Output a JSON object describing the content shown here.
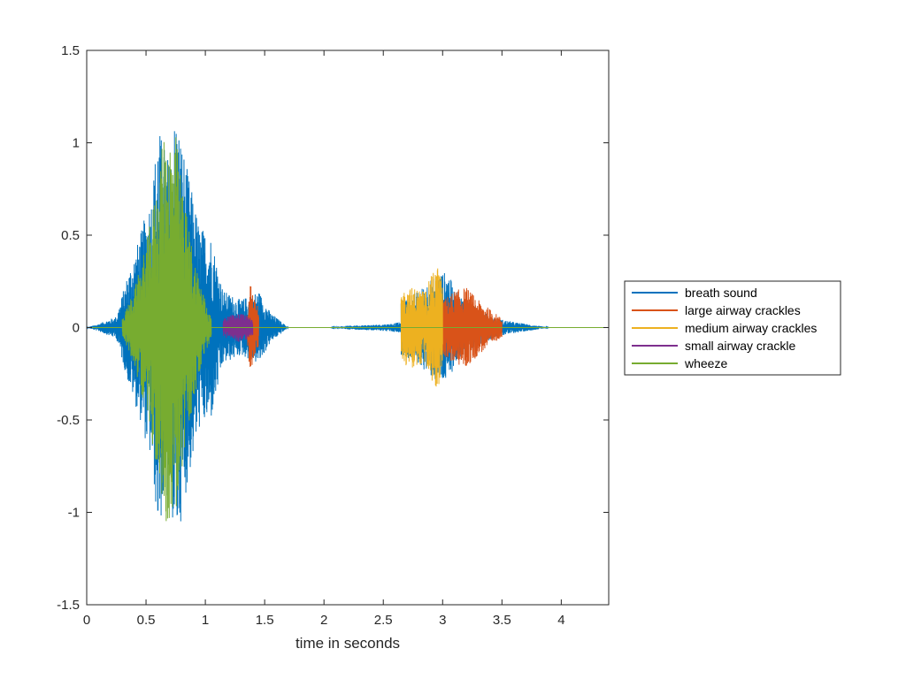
{
  "chart_data": {
    "type": "line",
    "title": "",
    "xlabel": "time in seconds",
    "ylabel": "",
    "xlim": [
      0,
      4.4
    ],
    "ylim": [
      -1.5,
      1.5
    ],
    "xticks": [
      "0",
      "0.5",
      "1",
      "1.5",
      "2",
      "2.5",
      "3",
      "3.5",
      "4"
    ],
    "yticks": [
      "-1.5",
      "-1",
      "-0.5",
      "0",
      "0.5",
      "1",
      "1.5"
    ],
    "grid": false,
    "legend_position": "outside-right",
    "series": [
      {
        "name": "breath sound",
        "color": "#0072BD",
        "segments": [
          {
            "start": 0.0,
            "end": 1.7,
            "envelope": [
              [
                0.0,
                0.0
              ],
              [
                0.1,
                0.02
              ],
              [
                0.25,
                0.06
              ],
              [
                0.35,
                0.3
              ],
              [
                0.45,
                0.5
              ],
              [
                0.55,
                0.75
              ],
              [
                0.6,
                1.1
              ],
              [
                0.7,
                0.9
              ],
              [
                0.75,
                1.2
              ],
              [
                0.85,
                0.85
              ],
              [
                0.95,
                0.55
              ],
              [
                1.05,
                0.5
              ],
              [
                1.15,
                0.2
              ],
              [
                1.3,
                0.15
              ],
              [
                1.45,
                0.2
              ],
              [
                1.55,
                0.08
              ],
              [
                1.7,
                0.0
              ]
            ]
          },
          {
            "start": 2.05,
            "end": 2.65,
            "envelope": [
              [
                2.05,
                0.0
              ],
              [
                2.2,
                0.01
              ],
              [
                2.4,
                0.015
              ],
              [
                2.55,
                0.02
              ],
              [
                2.65,
                0.03
              ]
            ]
          },
          {
            "start": 2.65,
            "end": 3.1,
            "envelope": [
              [
                2.65,
                0.15
              ],
              [
                2.8,
                0.2
              ],
              [
                2.95,
                0.3
              ],
              [
                3.05,
                0.3
              ],
              [
                3.1,
                0.2
              ]
            ]
          },
          {
            "start": 3.1,
            "end": 3.9,
            "envelope": [
              [
                3.1,
                0.2
              ],
              [
                3.3,
                0.1
              ],
              [
                3.45,
                0.05
              ],
              [
                3.6,
                0.03
              ],
              [
                3.8,
                0.01
              ],
              [
                3.9,
                0.0
              ]
            ]
          }
        ]
      },
      {
        "name": "large airway crackles",
        "color": "#D95319",
        "segments": [
          {
            "start": 1.35,
            "end": 1.45,
            "envelope": [
              [
                1.35,
                0.1
              ],
              [
                1.38,
                0.25
              ],
              [
                1.42,
                0.15
              ],
              [
                1.45,
                0.1
              ]
            ]
          },
          {
            "start": 3.0,
            "end": 3.5,
            "envelope": [
              [
                3.0,
                0.15
              ],
              [
                3.1,
                0.2
              ],
              [
                3.2,
                0.22
              ],
              [
                3.3,
                0.15
              ],
              [
                3.4,
                0.1
              ],
              [
                3.5,
                0.05
              ]
            ]
          }
        ]
      },
      {
        "name": "medium airway crackles",
        "color": "#EDB120",
        "segments": [
          {
            "start": 2.65,
            "end": 3.0,
            "envelope": [
              [
                2.65,
                0.2
              ],
              [
                2.75,
                0.22
              ],
              [
                2.85,
                0.2
              ],
              [
                2.95,
                0.35
              ],
              [
                3.0,
                0.25
              ]
            ]
          }
        ]
      },
      {
        "name": "small airway crackle",
        "color": "#7E2F8E",
        "segments": [
          {
            "start": 1.15,
            "end": 1.4,
            "envelope": [
              [
                1.15,
                0.05
              ],
              [
                1.22,
                0.07
              ],
              [
                1.3,
                0.08
              ],
              [
                1.37,
                0.06
              ],
              [
                1.4,
                0.04
              ]
            ]
          }
        ]
      },
      {
        "name": "wheeze",
        "color": "#77AC30",
        "segments": [
          {
            "start": 0.3,
            "end": 1.05,
            "envelope": [
              [
                0.3,
                0.05
              ],
              [
                0.4,
                0.2
              ],
              [
                0.5,
                0.45
              ],
              [
                0.6,
                0.8
              ],
              [
                0.65,
                1.05
              ],
              [
                0.75,
                1.05
              ],
              [
                0.82,
                0.7
              ],
              [
                0.9,
                0.4
              ],
              [
                1.0,
                0.15
              ],
              [
                1.05,
                0.05
              ]
            ]
          }
        ]
      }
    ]
  }
}
